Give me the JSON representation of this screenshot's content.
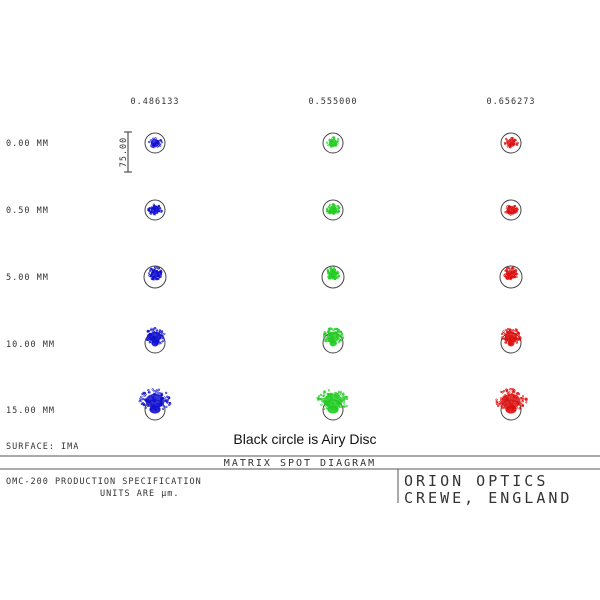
{
  "wavelengths": [
    "0.486133",
    "0.555000",
    "0.656273"
  ],
  "fields": [
    "0.00 MM",
    "0.50 MM",
    "5.00 MM",
    "10.00 MM",
    "15.00 MM"
  ],
  "scale_label": "75.00",
  "surface_label": "SURFACE: IMA",
  "airy_note": "Black circle is Airy Disc",
  "diagram_title": "MATRIX SPOT DIAGRAM",
  "spec_line1": "OMC-200 PRODUCTION SPECIFICATION",
  "spec_line2": "UNITS ARE µm.",
  "company_line1": "ORION OPTICS",
  "company_line2": "CREWE, ENGLAND",
  "colors": {
    "blue": "#1010d0",
    "green": "#22cc22",
    "red": "#dd1010",
    "airy": "#444444",
    "frame": "#333333"
  }
}
